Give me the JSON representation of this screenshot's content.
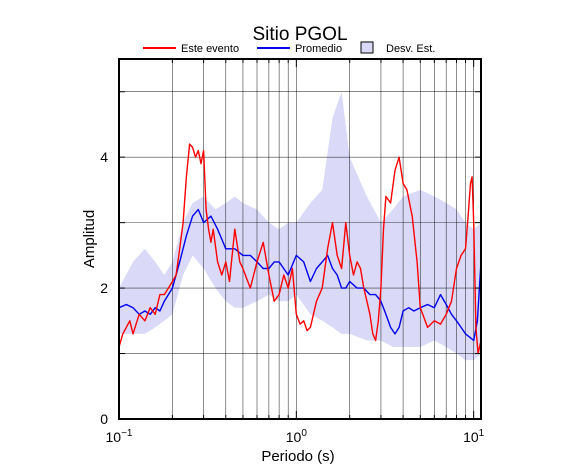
{
  "chart_data": {
    "type": "line",
    "title": "Sitio PGOL",
    "xlabel": "Periodo (s)",
    "ylabel": "Amplitud",
    "xscale": "log",
    "xlim": [
      0.1,
      11
    ],
    "ylim": [
      0,
      5.5
    ],
    "grid": true,
    "legend_position": "top",
    "x_ticks": [
      {
        "value": 0.1,
        "base": "10",
        "exp": "−1"
      },
      {
        "value": 1,
        "base": "10",
        "exp": "0"
      },
      {
        "value": 10,
        "base": "10",
        "exp": "1"
      }
    ],
    "y_ticks": [
      0,
      2,
      4
    ],
    "legend": [
      {
        "label": "Este evento",
        "kind": "line",
        "color": "#ff0000"
      },
      {
        "label": "Promedio",
        "kind": "line",
        "color": "#0000ee"
      },
      {
        "label": "Desv. Est.",
        "kind": "box",
        "color": "#dadaf8"
      }
    ],
    "band": {
      "name": "Desv. Est.",
      "color": "#dadaf8",
      "x": [
        0.1,
        0.12,
        0.14,
        0.16,
        0.18,
        0.2,
        0.23,
        0.26,
        0.3,
        0.35,
        0.4,
        0.45,
        0.5,
        0.6,
        0.7,
        0.8,
        0.9,
        1.0,
        1.2,
        1.4,
        1.6,
        1.8,
        2.0,
        2.5,
        3.0,
        3.5,
        4.0,
        5.0,
        6.0,
        7.0,
        8.0,
        9.0,
        10.0,
        11.0
      ],
      "upper": [
        2.0,
        2.4,
        2.6,
        2.4,
        2.2,
        2.4,
        3.0,
        3.3,
        3.4,
        3.2,
        3.3,
        3.4,
        3.3,
        3.2,
        3.0,
        2.9,
        3.0,
        3.0,
        3.3,
        3.5,
        4.6,
        5.0,
        4.0,
        3.4,
        3.0,
        3.2,
        3.4,
        3.5,
        3.4,
        3.3,
        3.2,
        3.0,
        2.9,
        3.0
      ],
      "lower": [
        1.3,
        1.3,
        1.3,
        1.4,
        1.5,
        1.6,
        2.2,
        2.5,
        2.3,
        2.0,
        1.8,
        1.7,
        1.7,
        1.8,
        1.9,
        1.8,
        1.8,
        1.9,
        1.6,
        1.5,
        1.4,
        1.3,
        1.3,
        1.2,
        1.2,
        1.1,
        1.1,
        1.1,
        1.2,
        1.1,
        1.0,
        0.9,
        0.9,
        1.0
      ]
    },
    "series": [
      {
        "name": "Promedio",
        "color": "#0000ee",
        "x": [
          0.1,
          0.11,
          0.12,
          0.13,
          0.14,
          0.15,
          0.16,
          0.17,
          0.18,
          0.19,
          0.2,
          0.22,
          0.24,
          0.26,
          0.28,
          0.3,
          0.33,
          0.36,
          0.4,
          0.45,
          0.5,
          0.55,
          0.6,
          0.65,
          0.7,
          0.75,
          0.8,
          0.9,
          1.0,
          1.1,
          1.2,
          1.3,
          1.4,
          1.5,
          1.6,
          1.7,
          1.8,
          1.9,
          2.0,
          2.2,
          2.4,
          2.6,
          2.8,
          3.0,
          3.2,
          3.4,
          3.6,
          3.8,
          4.0,
          4.3,
          4.6,
          5.0,
          5.5,
          6.0,
          6.5,
          7.0,
          7.5,
          8.0,
          8.5,
          9.0,
          9.5,
          10.0,
          10.5,
          11.0
        ],
        "y": [
          1.7,
          1.75,
          1.7,
          1.6,
          1.65,
          1.6,
          1.7,
          1.65,
          1.8,
          1.9,
          2.0,
          2.4,
          2.8,
          3.1,
          3.2,
          3.0,
          3.1,
          2.9,
          2.6,
          2.6,
          2.5,
          2.5,
          2.4,
          2.3,
          2.3,
          2.4,
          2.4,
          2.2,
          2.5,
          2.4,
          2.1,
          2.3,
          2.4,
          2.5,
          2.3,
          2.2,
          2.0,
          2.0,
          2.1,
          2.0,
          2.0,
          1.9,
          1.9,
          1.8,
          1.6,
          1.4,
          1.3,
          1.4,
          1.65,
          1.7,
          1.65,
          1.7,
          1.75,
          1.7,
          1.9,
          1.75,
          1.6,
          1.5,
          1.4,
          1.3,
          1.25,
          1.2,
          1.5,
          2.4
        ]
      },
      {
        "name": "Este evento",
        "color": "#ff0000",
        "x": [
          0.1,
          0.105,
          0.11,
          0.115,
          0.12,
          0.13,
          0.14,
          0.15,
          0.16,
          0.17,
          0.18,
          0.19,
          0.2,
          0.21,
          0.22,
          0.23,
          0.24,
          0.25,
          0.26,
          0.27,
          0.28,
          0.29,
          0.3,
          0.31,
          0.32,
          0.33,
          0.34,
          0.36,
          0.38,
          0.4,
          0.42,
          0.45,
          0.48,
          0.5,
          0.55,
          0.6,
          0.65,
          0.7,
          0.75,
          0.8,
          0.85,
          0.9,
          0.95,
          1.0,
          1.05,
          1.1,
          1.15,
          1.2,
          1.3,
          1.4,
          1.5,
          1.6,
          1.7,
          1.8,
          1.9,
          2.0,
          2.1,
          2.2,
          2.3,
          2.4,
          2.5,
          2.6,
          2.7,
          2.8,
          2.9,
          3.0,
          3.1,
          3.2,
          3.4,
          3.6,
          3.8,
          4.0,
          4.2,
          4.5,
          4.8,
          5.0,
          5.5,
          6.0,
          6.5,
          7.0,
          7.5,
          8.0,
          8.5,
          9.0,
          9.3,
          9.6,
          9.8,
          10.0,
          10.3,
          10.6,
          11.0
        ],
        "y": [
          1.1,
          1.3,
          1.4,
          1.5,
          1.3,
          1.6,
          1.5,
          1.7,
          1.6,
          1.9,
          1.9,
          2.0,
          2.1,
          2.2,
          2.6,
          3.0,
          3.7,
          4.2,
          4.15,
          4.0,
          4.1,
          3.9,
          4.1,
          3.2,
          2.9,
          2.7,
          2.9,
          2.4,
          2.2,
          2.4,
          2.1,
          2.9,
          2.4,
          2.3,
          2.0,
          2.4,
          2.7,
          2.2,
          1.8,
          1.9,
          2.2,
          2.0,
          2.3,
          1.6,
          1.45,
          1.5,
          1.35,
          1.4,
          1.8,
          2.0,
          2.6,
          3.0,
          2.5,
          2.3,
          3.0,
          2.5,
          2.2,
          2.4,
          2.3,
          2.0,
          1.8,
          1.6,
          1.3,
          1.2,
          1.5,
          2.0,
          2.9,
          3.4,
          3.3,
          3.8,
          4.0,
          3.6,
          3.5,
          3.1,
          2.4,
          1.7,
          1.4,
          1.5,
          1.45,
          1.6,
          1.8,
          2.3,
          2.5,
          2.6,
          3.1,
          3.6,
          3.7,
          3.0,
          1.4,
          1.0,
          1.2
        ]
      }
    ]
  }
}
